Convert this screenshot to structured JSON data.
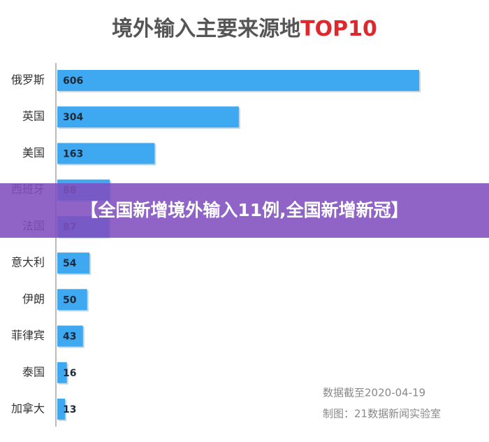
{
  "chart_data": {
    "type": "bar",
    "orientation": "horizontal",
    "title": [
      "境外输入主要来源地",
      "TOP10"
    ],
    "categories": [
      "俄罗斯",
      "英国",
      "美国",
      "西班牙",
      "法国",
      "意大利",
      "伊朗",
      "菲律宾",
      "泰国",
      "加拿大"
    ],
    "values": [
      606,
      304,
      163,
      88,
      87,
      54,
      50,
      43,
      16,
      13
    ],
    "color": "#3ea8f0",
    "notes": [
      "数据截至2020-04-19",
      "制图：21数据新闻实验室"
    ]
  },
  "banner": "【全国新增境外输入11例,全国新增新冠】"
}
